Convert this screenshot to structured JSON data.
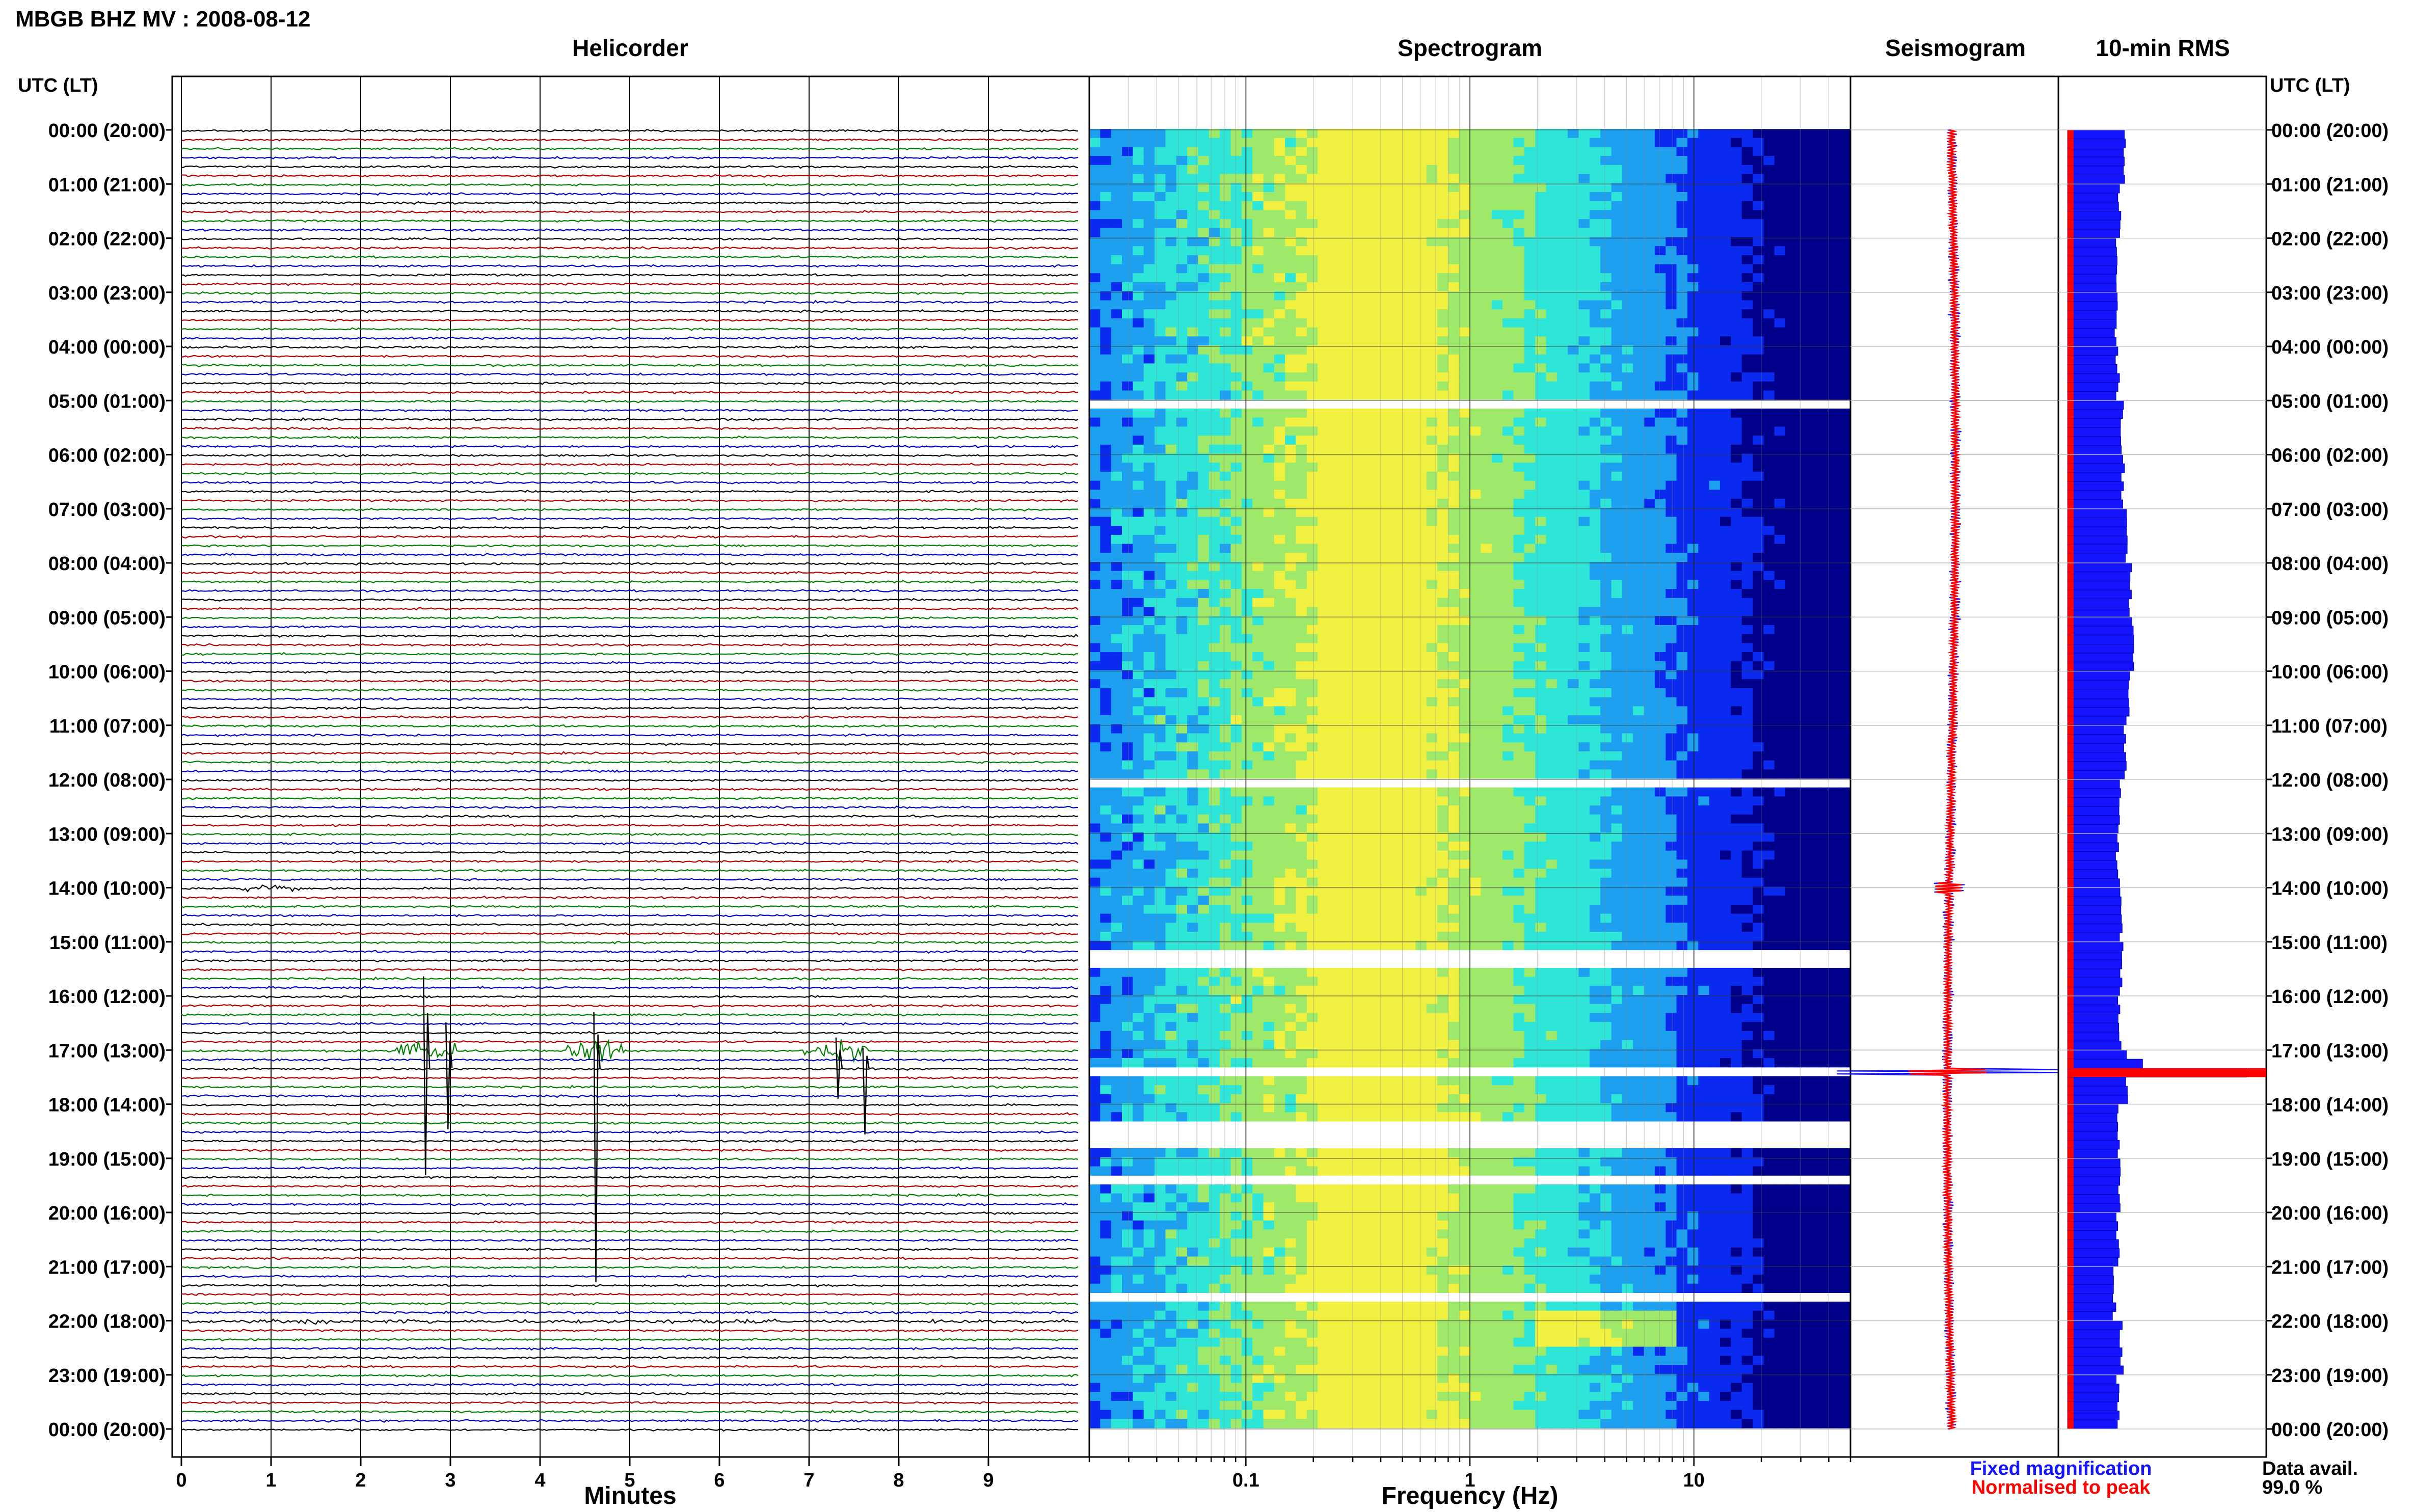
{
  "figure": {
    "title": "MBGB BHZ MV : 2008-08-12",
    "panel_titles": {
      "helicorder": "Helicorder",
      "spectrogram": "Spectrogram",
      "seismogram": "Seismogram",
      "rms": "10-min RMS"
    },
    "time_header": "UTC (LT)",
    "time_labels": [
      "00:00 (20:00)",
      "01:00 (21:00)",
      "02:00 (22:00)",
      "03:00 (23:00)",
      "04:00 (00:00)",
      "05:00 (01:00)",
      "06:00 (02:00)",
      "07:00 (03:00)",
      "08:00 (04:00)",
      "09:00 (05:00)",
      "10:00 (06:00)",
      "11:00 (07:00)",
      "12:00 (08:00)",
      "13:00 (09:00)",
      "14:00 (10:00)",
      "15:00 (11:00)",
      "16:00 (12:00)",
      "17:00 (13:00)",
      "18:00 (14:00)",
      "19:00 (15:00)",
      "20:00 (16:00)",
      "21:00 (17:00)",
      "22:00 (18:00)",
      "23:00 (19:00)",
      "00:00 (20:00)"
    ],
    "legend": {
      "fixed": "Fixed magnification",
      "normalised": "Normalised to peak",
      "fixed_color": "#1414ff",
      "normalised_color": "#ff0000"
    },
    "data_avail_label": "Data avail.",
    "data_avail_value": "99.0 %"
  },
  "chart_data": [
    {
      "type": "line",
      "panel": "Helicorder",
      "xlabel": "Minutes",
      "x_ticks": [
        "0",
        "1",
        "2",
        "3",
        "4",
        "5",
        "6",
        "7",
        "8",
        "9"
      ],
      "xlim": [
        0,
        10
      ],
      "rows_per_hour": 6,
      "trace_colors": [
        "#000000",
        "#b00000",
        "#008000",
        "#0000c0"
      ],
      "events": [
        {
          "hour": 14.0,
          "minute": 1.0,
          "amplitude": "moderate"
        },
        {
          "hour": 17.0,
          "minute": 2.7,
          "amplitude": "large"
        },
        {
          "hour": 17.0,
          "minute": 4.6,
          "amplitude": "very large"
        },
        {
          "hour": 17.0,
          "minute": 7.3,
          "amplitude": "large"
        },
        {
          "hour": 22.0,
          "minute": 0.0,
          "amplitude": "elevated"
        }
      ]
    },
    {
      "type": "heatmap",
      "panel": "Spectrogram",
      "xlabel": "Frequency (Hz)",
      "x_scale": "log",
      "x_ticks": [
        "0.1",
        "1",
        "10"
      ],
      "xlim": [
        0.02,
        50
      ],
      "ylim_hours": [
        0,
        24
      ],
      "colormap": [
        "#00008b",
        "#0a2af0",
        "#1ea0f0",
        "#2ee6d8",
        "#9ee86a",
        "#f0f040"
      ],
      "peak_band_hz": [
        0.2,
        0.6
      ]
    },
    {
      "type": "line",
      "panel": "Seismogram",
      "series": [
        {
          "name": "Fixed magnification",
          "color": "#1414ff"
        },
        {
          "name": "Normalised to peak",
          "color": "#ff0000"
        }
      ],
      "peak_hour": 17.4
    },
    {
      "type": "bar",
      "panel": "10-min RMS",
      "orientation": "horizontal",
      "interval_minutes": 10,
      "hours": [
        0,
        1,
        2,
        3,
        4,
        5,
        6,
        7,
        8,
        9,
        10,
        11,
        12,
        13,
        14,
        15,
        16,
        17,
        18,
        19,
        20,
        21,
        22,
        23
      ],
      "values_relative": [
        0.32,
        0.29,
        0.28,
        0.27,
        0.28,
        0.3,
        0.31,
        0.33,
        0.35,
        0.37,
        0.34,
        0.32,
        0.29,
        0.28,
        0.3,
        0.3,
        0.29,
        0.33,
        0.28,
        0.29,
        0.28,
        0.26,
        0.3,
        0.28
      ],
      "peak": {
        "hour": 17.4,
        "value_relative": 1.0
      },
      "series": [
        {
          "name": "Fixed magnification",
          "color": "#1414ff"
        },
        {
          "name": "Normalised to peak",
          "color": "#ff0000"
        }
      ]
    }
  ]
}
